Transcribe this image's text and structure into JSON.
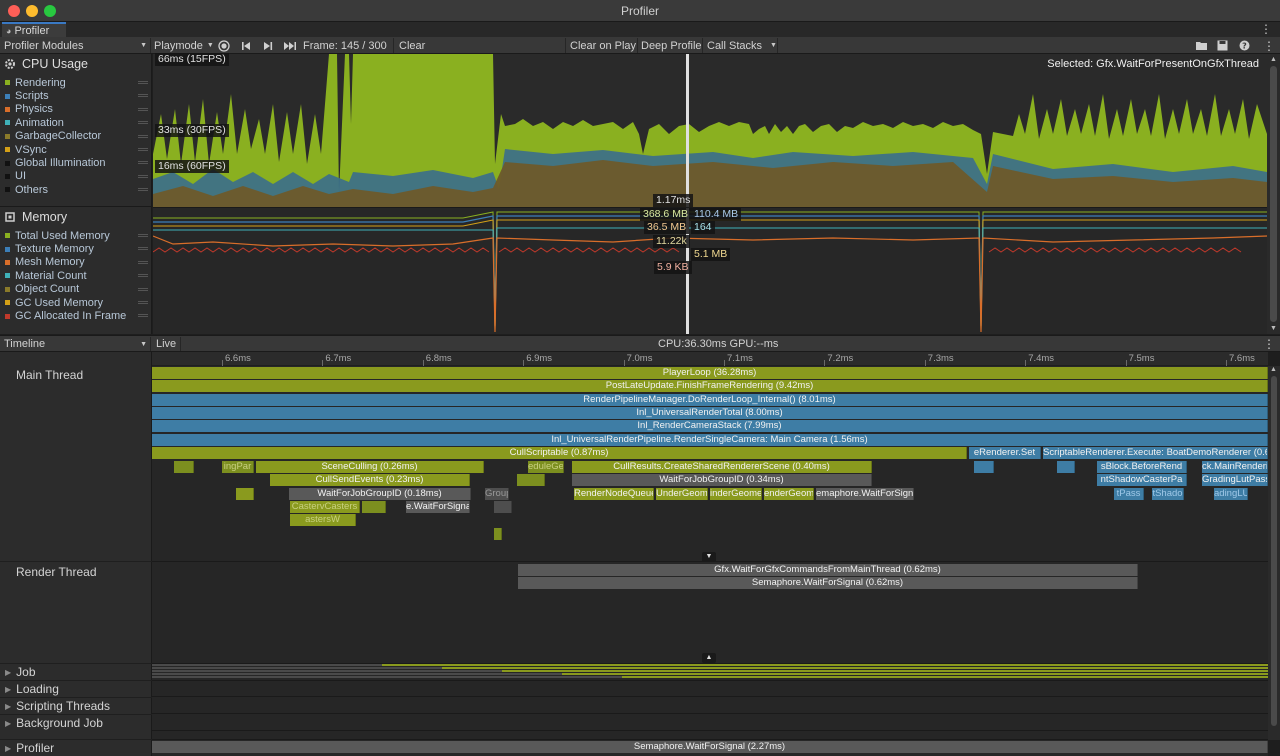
{
  "window": {
    "title": "Profiler",
    "tab_label": "Profiler"
  },
  "toolbar": {
    "modules_label": "Profiler Modules",
    "target_label": "Playmode",
    "frame_label": "Frame: 145 / 300",
    "clear_label": "Clear",
    "clear_on_play_label": "Clear on Play",
    "deep_profile_label": "Deep Profile",
    "call_stacks_label": "Call Stacks"
  },
  "cpu_module": {
    "title": "CPU Usage",
    "items": [
      {
        "label": "Rendering",
        "color": "#8ab020"
      },
      {
        "label": "Scripts",
        "color": "#3c7fb8"
      },
      {
        "label": "Physics",
        "color": "#d96e2a"
      },
      {
        "label": "Animation",
        "color": "#3fb0b8"
      },
      {
        "label": "GarbageCollector",
        "color": "#8a7a2a"
      },
      {
        "label": "VSync",
        "color": "#d4a017"
      },
      {
        "label": "Global Illumination",
        "color": "#111111"
      },
      {
        "label": "UI",
        "color": "#111111"
      },
      {
        "label": "Others",
        "color": "#111111"
      }
    ],
    "label_66": "66ms (15FPS)",
    "label_33": "33ms (30FPS)",
    "label_16": "16ms (60FPS)",
    "selected_text": "Selected: Gfx.WaitForPresentOnGfxThread",
    "frame_value": "1.17ms"
  },
  "memory_module": {
    "title": "Memory",
    "items": [
      {
        "label": "Total Used Memory",
        "color": "#8ab020"
      },
      {
        "label": "Texture Memory",
        "color": "#3c7fb8"
      },
      {
        "label": "Mesh Memory",
        "color": "#d96e2a"
      },
      {
        "label": "Material Count",
        "color": "#3fb0b8"
      },
      {
        "label": "Object Count",
        "color": "#8a7a2a"
      },
      {
        "label": "GC Used Memory",
        "color": "#d4a017"
      },
      {
        "label": "GC Allocated In Frame",
        "color": "#c0392b"
      }
    ],
    "values": {
      "total_used": "368.6 MB",
      "texture": "110.4 MB",
      "mesh": "36.5 MB",
      "material": "164",
      "object": "11.22k",
      "gc_used": "5.1 MB",
      "gc_alloc": "5.9 KB"
    }
  },
  "timeline": {
    "view_label": "Timeline",
    "live_label": "Live",
    "cpu_gpu_label": "CPU:36.30ms   GPU:--ms",
    "ticks": [
      "6.6ms",
      "6.7ms",
      "6.8ms",
      "6.9ms",
      "7.0ms",
      "7.1ms",
      "7.2ms",
      "7.3ms",
      "7.4ms",
      "7.5ms",
      "7.6ms"
    ],
    "threads": {
      "main": "Main Thread",
      "render": "Render Thread",
      "job": "Job",
      "loading": "Loading",
      "scripting": "Scripting Threads",
      "background": "Background Job",
      "profiler": "Profiler"
    },
    "main_bars": {
      "playerloop": "PlayerLoop (36.28ms)",
      "postlate": "PostLateUpdate.FinishFrameRendering (9.42ms)",
      "rpm": "RenderPipelineManager.DoRenderLoop_Internal() (8.01ms)",
      "urt": "Inl_UniversalRenderTotal (8.00ms)",
      "rcs": "Inl_RenderCameraStack (7.99ms)",
      "urp_cam": "Inl_UniversalRenderPipeline.RenderSingleCamera: Main Camera (1.56ms)",
      "cull_scriptable": "CullScriptable (0.87ms)",
      "renderer_set": "eRenderer.Set",
      "sr_execute": "ScriptableRenderer.Execute: BoatDemoRenderer (0.60m",
      "ring_par": "ingPar",
      "scene_culling": "SceneCulling (0.26ms)",
      "dule_geo": "eduleGeo",
      "cull_results": "CullResults.CreateSharedRendererScene (0.40ms)",
      "block_before": "sBlock.BeforeRend",
      "main_rendering": "ck.MainRenderin",
      "cull_send": "CullSendEvents (0.23ms)",
      "wait_job_034": "WaitForJobGroupID (0.34ms)",
      "shadow_caster": "ntShadowCasterPa",
      "grading_lut": "GradingLutPass",
      "wait_job_018": "WaitForJobGroupID (0.18ms)",
      "group": "Group",
      "render_node_queue": "RenderNodeQueue (0",
      "under_geom1": "UnderGeom",
      "under_geom2": "inderGeome",
      "under_geom3": "enderGeome",
      "semaphore_wait": "emaphore.WaitForSignal (0.1",
      "t_pass": "tPass",
      "t_shadow": "tShado",
      "ading_lu": "adingLU",
      "caster_casters": "CastervCasters",
      "e_wait_signal": "e.WaitForSigna",
      "asters_w": "astersW"
    },
    "render_bars": {
      "gfx_wait": "Gfx.WaitForGfxCommandsFromMainThread (0.62ms)",
      "semaphore": "Semaphore.WaitForSignal (0.62ms)"
    },
    "profiler_bar": "Semaphore.WaitForSignal (2.27ms)"
  }
}
